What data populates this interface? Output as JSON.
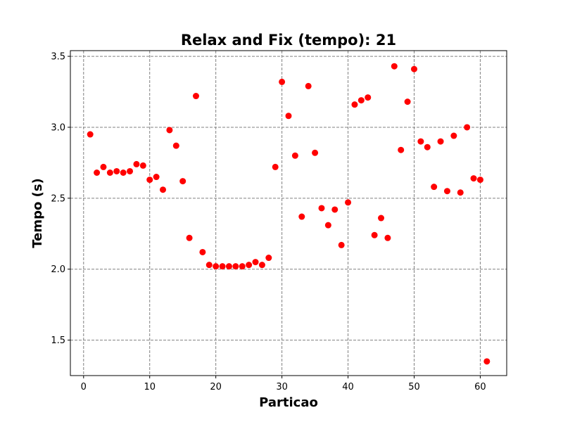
{
  "chart_data": {
    "type": "scatter",
    "title": "Relax and Fix (tempo): 21",
    "xlabel": "Particao",
    "ylabel": "Tempo (s)",
    "xlim": [
      -2,
      64
    ],
    "ylim": [
      1.25,
      3.54
    ],
    "xticks": [
      0,
      10,
      20,
      30,
      40,
      50,
      60
    ],
    "yticks": [
      1.5,
      2.0,
      2.5,
      3.0,
      3.5
    ],
    "xtick_labels": [
      "0",
      "10",
      "20",
      "30",
      "40",
      "50",
      "60"
    ],
    "ytick_labels": [
      "1.5",
      "2.0",
      "2.5",
      "3.0",
      "3.5"
    ],
    "grid": true,
    "marker_color": "#ff0000",
    "series": [
      {
        "x": [
          1,
          2,
          3,
          4,
          5,
          6,
          7,
          8,
          9,
          10,
          11,
          12,
          13,
          14,
          15,
          16,
          17,
          18,
          19,
          20,
          21,
          22,
          23,
          24,
          25,
          26,
          27,
          28,
          29,
          30,
          31,
          32,
          33,
          34,
          35,
          36,
          37,
          38,
          39,
          40,
          41,
          42,
          43,
          44,
          45,
          46,
          47,
          48,
          49,
          50,
          51,
          52,
          53,
          54,
          55,
          56,
          57,
          58,
          59,
          60,
          61
        ],
        "y": [
          2.95,
          2.68,
          2.72,
          2.68,
          2.69,
          2.68,
          2.69,
          2.74,
          2.73,
          2.63,
          2.65,
          2.56,
          2.98,
          2.87,
          2.62,
          2.22,
          3.22,
          2.12,
          2.03,
          2.02,
          2.02,
          2.02,
          2.02,
          2.02,
          2.03,
          2.05,
          2.03,
          2.08,
          2.72,
          3.32,
          3.08,
          2.8,
          2.37,
          3.29,
          2.82,
          2.43,
          2.31,
          2.42,
          2.17,
          2.47,
          3.16,
          3.19,
          3.21,
          2.24,
          2.36,
          2.22,
          3.43,
          2.84,
          3.18,
          3.41,
          2.9,
          2.86,
          2.58,
          2.9,
          2.55,
          2.94,
          2.54,
          3.0,
          2.64,
          2.63,
          1.35
        ]
      }
    ]
  }
}
